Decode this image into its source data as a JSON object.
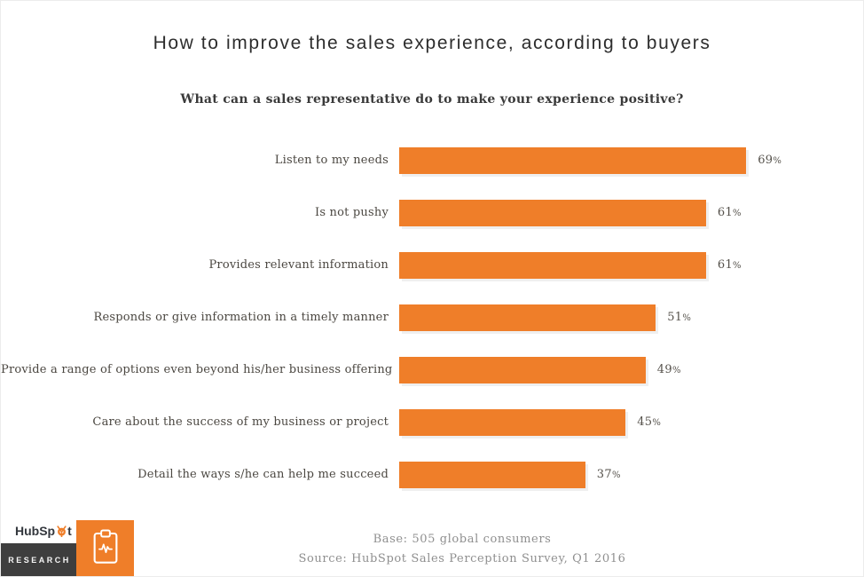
{
  "chart_data": {
    "type": "bar",
    "orientation": "horizontal",
    "title": "How to improve the sales experience, according to buyers",
    "subtitle": "What can a sales representative do to make your experience positive?",
    "categories": [
      "Listen to my needs",
      "Is not pushy",
      "Provides relevant information",
      "Responds or give information in a timely manner",
      "Provide a range of options even beyond his/her business offering",
      "Care about the success of my business or project",
      "Detail the ways s/he can help me succeed"
    ],
    "values": [
      69,
      61,
      61,
      51,
      49,
      45,
      37
    ],
    "unit": "%",
    "xlim": [
      0,
      100
    ],
    "grid": false,
    "legend": false,
    "bar_color": "#EF7E29",
    "value_label_position": "right-of-bar"
  },
  "footer": {
    "base_note": "Base: 505 global consumers",
    "source_note": "Source: HubSpot Sales Perception Survey, Q1 2016"
  },
  "branding": {
    "wordmark_prefix": "HubSp",
    "wordmark_suffix": "t",
    "research_label": "RESEARCH",
    "colors": {
      "orange": "#EF7E29",
      "charcoal": "#3E3E3E"
    }
  }
}
